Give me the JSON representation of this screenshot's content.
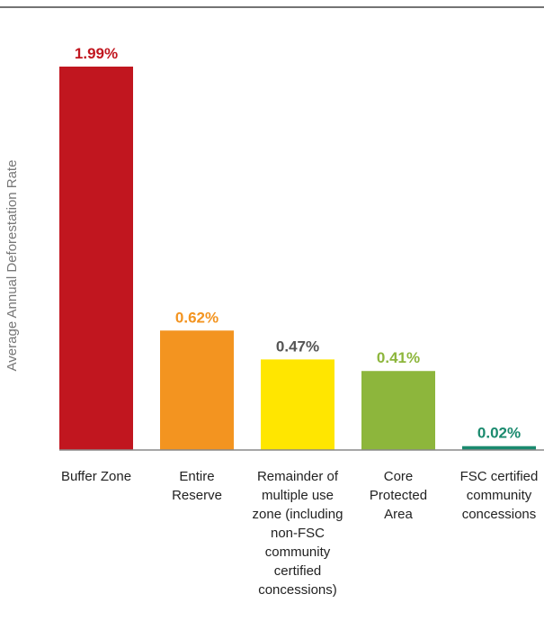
{
  "chart_data": {
    "type": "bar",
    "title": "",
    "xlabel": "",
    "ylabel": "Average Annual Deforestation Rate",
    "ylim": [
      0,
      2.1
    ],
    "grid": false,
    "categories": [
      "Buffer Zone",
      "Entire Reserve",
      "Remainder of multiple use zone (including non-FSC community certified concessions)",
      "Core Protected Area",
      "FSC certified community concessions"
    ],
    "category_label_lines": [
      [
        "Buffer Zone"
      ],
      [
        "Entire",
        "Reserve"
      ],
      [
        "Remainder of",
        "multiple use",
        "zone (including",
        "non-FSC",
        "community",
        "certified",
        "concessions)"
      ],
      [
        "Core",
        "Protected",
        "Area"
      ],
      [
        "FSC certified",
        "community",
        "concessions"
      ]
    ],
    "values": [
      1.99,
      0.62,
      0.47,
      0.41,
      0.02
    ],
    "value_labels": [
      "1.99%",
      "0.62%",
      "0.47%",
      "0.41%",
      "0.02%"
    ],
    "bar_colors": [
      "#c1161f",
      "#f39420",
      "#ffe600",
      "#8db63c",
      "#1a8a6e"
    ],
    "label_colors": [
      "#c1161f",
      "#f39420",
      "#555555",
      "#8db63c",
      "#1a8a6e"
    ]
  }
}
